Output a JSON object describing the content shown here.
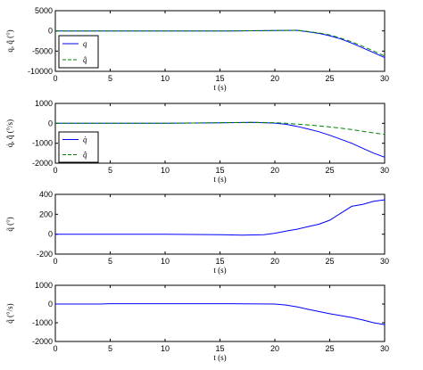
{
  "chart_data": [
    {
      "type": "line",
      "xlabel": "t (s)",
      "ylabel": "q, q̂ (°)",
      "xlim": [
        0,
        30
      ],
      "ylim": [
        -10000,
        5000
      ],
      "xticks": [
        "0",
        "5",
        "10",
        "15",
        "20",
        "25",
        "30"
      ],
      "yticks": [
        "5000",
        "0",
        "-5000",
        "-10000"
      ],
      "grid": false,
      "legend": "bottom-left",
      "series": [
        {
          "name": "q",
          "color": "#0000ff",
          "dash": "solid",
          "x": [
            0,
            10,
            16,
            20,
            22,
            23,
            24,
            25,
            26,
            27,
            28,
            29,
            30
          ],
          "y": [
            0,
            0,
            0,
            100,
            150,
            -200,
            -600,
            -1200,
            -2000,
            -3000,
            -4200,
            -5400,
            -6600
          ]
        },
        {
          "name": "q̂",
          "color": "#008000",
          "dash": "dashed",
          "x": [
            0,
            10,
            16,
            20,
            22,
            23,
            24,
            25,
            26,
            27,
            28,
            29,
            30
          ],
          "y": [
            0,
            0,
            0,
            100,
            150,
            -150,
            -500,
            -1000,
            -1800,
            -2700,
            -3800,
            -5000,
            -6200
          ]
        }
      ]
    },
    {
      "type": "line",
      "xlabel": "t (s)",
      "ylabel": "q̇, q̂̇ (°/s)",
      "xlim": [
        0,
        30
      ],
      "ylim": [
        -2000,
        1000
      ],
      "xticks": [
        "0",
        "5",
        "10",
        "15",
        "20",
        "25",
        "30"
      ],
      "yticks": [
        "1000",
        "0",
        "-1000",
        "-2000"
      ],
      "grid": false,
      "legend": "bottom-left",
      "series": [
        {
          "name": "q̇",
          "color": "#0000ff",
          "dash": "solid",
          "x": [
            0,
            10,
            15,
            18,
            20,
            21,
            22,
            23,
            24,
            25,
            26,
            27,
            28,
            29,
            30
          ],
          "y": [
            0,
            0,
            30,
            50,
            10,
            -50,
            -150,
            -280,
            -420,
            -600,
            -800,
            -1000,
            -1250,
            -1500,
            -1700
          ]
        },
        {
          "name": "q̂̇",
          "color": "#008000",
          "dash": "dashed",
          "x": [
            0,
            10,
            15,
            18,
            20,
            21,
            22,
            23,
            24,
            25,
            26,
            27,
            28,
            29,
            30
          ],
          "y": [
            0,
            0,
            30,
            50,
            30,
            0,
            -40,
            -80,
            -130,
            -180,
            -240,
            -310,
            -400,
            -480,
            -560
          ]
        }
      ]
    },
    {
      "type": "line",
      "xlabel": "t (s)",
      "ylabel": "q̃ (°)",
      "xlim": [
        0,
        30
      ],
      "ylim": [
        -200,
        400
      ],
      "xticks": [
        "0",
        "5",
        "10",
        "15",
        "20",
        "25",
        "30"
      ],
      "yticks": [
        "400",
        "200",
        "0",
        "-200"
      ],
      "grid": false,
      "legend": "none",
      "series": [
        {
          "name": "",
          "color": "#0000ff",
          "dash": "solid",
          "x": [
            0,
            10,
            15,
            17,
            19,
            20,
            21,
            22,
            23,
            24,
            25,
            26,
            27,
            28,
            29,
            30
          ],
          "y": [
            0,
            0,
            -5,
            -10,
            -5,
            10,
            30,
            50,
            75,
            100,
            140,
            210,
            280,
            300,
            330,
            345
          ]
        }
      ]
    },
    {
      "type": "line",
      "xlabel": "t (s)",
      "ylabel": "q̃̇ (°/s)",
      "xlim": [
        0,
        30
      ],
      "ylim": [
        -2000,
        1000
      ],
      "xticks": [
        "0",
        "5",
        "10",
        "15",
        "20",
        "25",
        "30"
      ],
      "yticks": [
        "1000",
        "0",
        "-1000",
        "-2000"
      ],
      "grid": false,
      "legend": "none",
      "series": [
        {
          "name": "",
          "color": "#0000ff",
          "dash": "solid",
          "x": [
            0,
            4,
            5,
            15,
            20,
            21,
            22,
            23,
            24,
            25,
            26,
            27,
            28,
            29,
            30
          ],
          "y": [
            0,
            0,
            20,
            20,
            0,
            -50,
            -150,
            -280,
            -400,
            -520,
            -620,
            -720,
            -850,
            -1000,
            -1100
          ]
        }
      ]
    }
  ]
}
